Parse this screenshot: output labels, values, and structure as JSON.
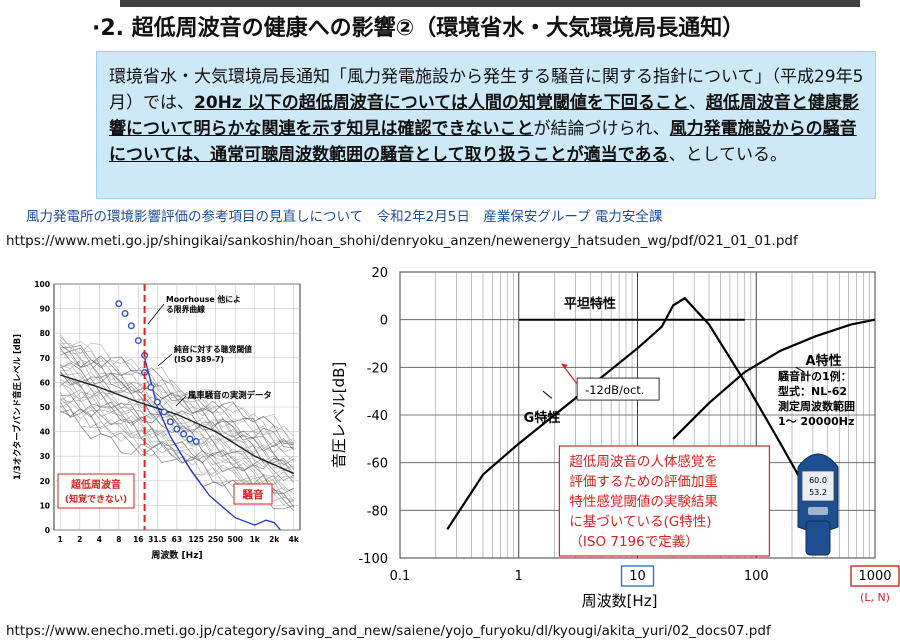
{
  "slide": {
    "title": "·2. 超低周波音の健康への影響②（環境省水・大気環境局長通知）",
    "notice": {
      "parts": [
        {
          "t": "環境省水・大気環境局長通知「風力発電施設から発生する騒音に関する指針について」（平成29年5月）では、",
          "em": false
        },
        {
          "t": "20Hz 以下の超低周波音については人間の知覚閾値を下回ること",
          "em": true
        },
        {
          "t": "、",
          "em": false
        },
        {
          "t": "超低周波音と健康影響について明らかな関連を示す知見は確認できないこと",
          "em": true
        },
        {
          "t": "が結論づけられ、",
          "em": false
        },
        {
          "t": "風力発電施設からの騒音については、通常可聴周波数範囲の騒音として取り扱うことが適当である",
          "em": true
        },
        {
          "t": "、としている。",
          "em": false
        }
      ]
    },
    "source_line": "風力発電所の環境影響評価の参考項目の見直しについて　令和2年2月5日　産業保安グループ 電力安全課",
    "url_top": "https://www.meti.go.jp/shingikai/sankoshin/hoan_shohi/denryoku_anzen/newenergy_hatsuden_wg/pdf/021_01_01.pdf",
    "url_bottom": "https://www.enecho.meti.go.jp/category/saving_and_new/saiene/yojo_furyoku/dl/kyougi/akita_yuri/02_docs07.pdf"
  },
  "colors": {
    "threshold_marker": "#3355cc",
    "curve_blue": "#2233cc",
    "red_accent": "#dd2222",
    "notice_bg": "#cde9f7"
  },
  "chart_data": [
    {
      "type": "line",
      "ylabel": "1/3オクターブバンド音圧レベル [dB]",
      "xlabel": "周波数 [Hz]",
      "ylim": [
        0,
        100
      ],
      "y_ticks": [
        "0",
        "10",
        "20",
        "30",
        "40",
        "50",
        "60",
        "70",
        "80",
        "90",
        "100"
      ],
      "x_ticks": [
        "1",
        "2",
        "4",
        "8",
        "16",
        "31.5",
        "63",
        "125",
        "250",
        "500",
        "1k",
        "2k",
        "4k"
      ],
      "x_scale": "log",
      "grid": true,
      "labels": {
        "moorhouse": "Moorhouse 他による限界曲線",
        "iso389": "純音に対する聴覚閾値(ISO 389-7)",
        "wind": "風車騒音の実測データ",
        "infra": "超低周波音(知覚できない)",
        "noise": "騒音"
      },
      "threshold_hz": 20,
      "series": [
        {
          "name": "Moorhouse 他による限界曲線",
          "x": [
            8,
            10,
            12.5,
            16,
            20
          ],
          "y": [
            92,
            88,
            83,
            77,
            71
          ]
        },
        {
          "name": "純音に対する聴覚閾値(ISO 389-7)",
          "x": [
            20,
            25,
            31.5,
            40,
            50,
            63,
            80,
            100,
            125
          ],
          "y": [
            64,
            58,
            52,
            48,
            44,
            41,
            39,
            37,
            36
          ]
        },
        {
          "name": "curve",
          "x": [
            20,
            31.5,
            50,
            100,
            200,
            500,
            1000,
            1500,
            2000,
            2500
          ],
          "y": [
            70,
            50,
            38,
            25,
            14,
            5,
            2,
            4,
            3,
            0
          ]
        },
        {
          "name": "風車騒音の実測データ",
          "x": [
            1,
            4,
            16,
            63,
            250,
            1000,
            4000
          ],
          "y": [
            63,
            58,
            52,
            47,
            40,
            30,
            23
          ]
        }
      ]
    },
    {
      "type": "line",
      "ylabel": "音圧レベル[dB]",
      "xlabel": "周波数[Hz]",
      "ylim": [
        -100,
        20
      ],
      "y_ticks": [
        "20",
        "0",
        "-20",
        "-40",
        "-60",
        "-80",
        "-100"
      ],
      "x_ticks": [
        "0.1",
        "1",
        "10",
        "100",
        "1000"
      ],
      "x_scale": "log",
      "xlim": [
        0.1,
        1000
      ],
      "grid": true,
      "labels": {
        "flat": "平坦特性",
        "a": "A特性",
        "g": "G特性",
        "slope": "-12dB/oct.",
        "ln": "(L, N)"
      },
      "series": [
        {
          "name": "G特性",
          "x": [
            0.25,
            0.5,
            1,
            2,
            4,
            10,
            16,
            20,
            25,
            40,
            80,
            160,
            315
          ],
          "y": [
            -88,
            -65,
            -52,
            -40,
            -28,
            -12,
            -3,
            6,
            9,
            -2,
            -26,
            -52,
            -78
          ]
        },
        {
          "name": "平坦特性",
          "x": [
            1,
            80
          ],
          "y": [
            0,
            0
          ]
        },
        {
          "name": "A特性",
          "x": [
            20,
            40,
            80,
            160,
            315,
            630,
            1000
          ],
          "y": [
            -50,
            -35,
            -22,
            -13,
            -7,
            -2,
            0
          ]
        }
      ]
    }
  ],
  "meter_note": {
    "lines": [
      "騒音計の1例：",
      "型式：NL-62",
      "測定周波数範囲",
      "1～ 20000Hz"
    ],
    "screen": [
      "60.0",
      "53.2"
    ]
  },
  "callout_lines": [
    "超低周波音の人体感覚を",
    "評価するための評価加重",
    "特性感覚閾値の実験結果",
    "に基づいている(G特性)",
    "（ISO 7196で定義）"
  ],
  "axis_highlights": [
    "10",
    "1000"
  ]
}
